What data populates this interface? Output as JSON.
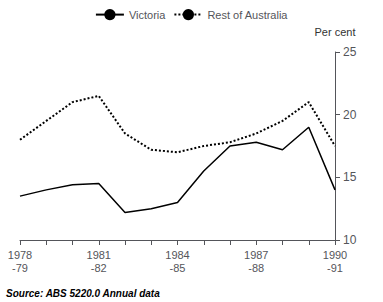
{
  "chart_data": {
    "type": "line",
    "ylabel": "Per cent",
    "annotations": [
      "Source: ABS 5220.0 Annual data"
    ],
    "categories": [
      "1978\n-79",
      null,
      null,
      "1981\n-82",
      null,
      null,
      "1984\n-85",
      null,
      null,
      "1987\n-88",
      null,
      null,
      "1990\n-91"
    ],
    "series": [
      {
        "name": "Victoria",
        "color": "#000000",
        "line_style": "solid",
        "values": [
          13.5,
          14.0,
          14.4,
          14.5,
          12.2,
          12.5,
          13.0,
          15.5,
          17.5,
          17.8,
          17.2,
          19.0,
          14.0
        ]
      },
      {
        "name": "Rest of Australia",
        "color": "#000000",
        "line_style": "dotted",
        "values": [
          18.0,
          19.5,
          21.0,
          21.5,
          18.5,
          17.2,
          17.0,
          17.5,
          17.8,
          18.5,
          19.5,
          21.0,
          17.5
        ]
      }
    ],
    "ylim": [
      10,
      25
    ],
    "yticks": [
      10,
      15,
      20,
      25
    ],
    "grid": false,
    "legend": "top"
  }
}
